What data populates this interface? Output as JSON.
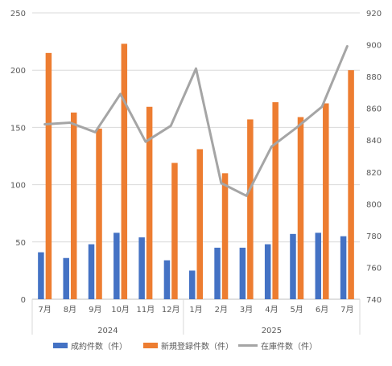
{
  "chart_data": {
    "type": "bar",
    "categories": [
      "7月",
      "8月",
      "9月",
      "10月",
      "11月",
      "12月",
      "1月",
      "2月",
      "3月",
      "4月",
      "5月",
      "6月",
      "7月"
    ],
    "groups": [
      {
        "label": "2024",
        "from": 0,
        "to": 5
      },
      {
        "label": "2025",
        "from": 6,
        "to": 12
      }
    ],
    "left_axis": {
      "ylim": [
        0,
        250
      ],
      "ticks": [
        0,
        50,
        100,
        150,
        200,
        250
      ]
    },
    "right_axis": {
      "ylim": [
        740,
        920
      ],
      "ticks": [
        740,
        760,
        780,
        800,
        820,
        840,
        860,
        880,
        900,
        920
      ]
    },
    "series": [
      {
        "name": "成約件数（件）",
        "kind": "bar",
        "axis": "left",
        "color": "#4472C4",
        "values": [
          41,
          36,
          48,
          58,
          54,
          34,
          25,
          45,
          45,
          48,
          57,
          58,
          55
        ]
      },
      {
        "name": "新規登録件数（件）",
        "kind": "bar",
        "axis": "left",
        "color": "#ED7D31",
        "values": [
          215,
          163,
          149,
          223,
          168,
          119,
          131,
          110,
          157,
          172,
          159,
          171,
          200
        ]
      },
      {
        "name": "在庫件数（件）",
        "kind": "line",
        "axis": "right",
        "color": "#A5A5A5",
        "values": [
          850,
          851,
          845,
          869,
          839,
          849,
          885,
          813,
          805,
          836,
          848,
          861,
          899
        ]
      }
    ],
    "grid": true,
    "legend_position": "bottom"
  }
}
